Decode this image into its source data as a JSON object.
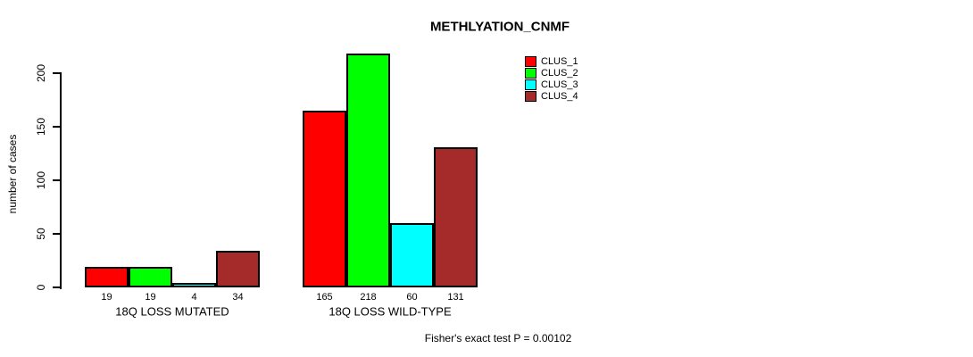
{
  "chart_data": {
    "type": "bar",
    "title": "METHLYATION_CNMF",
    "ylabel": "number of cases",
    "xlabel": "",
    "yticks": [
      0,
      50,
      100,
      150,
      200
    ],
    "ylim": [
      0,
      220
    ],
    "grid": false,
    "legend_position": "top-right",
    "categories": [
      "18Q LOSS MUTATED",
      "18Q LOSS WILD-TYPE"
    ],
    "series": [
      {
        "name": "CLUS_1",
        "color": "#ff0000",
        "values": [
          19,
          165
        ]
      },
      {
        "name": "CLUS_2",
        "color": "#00ff00",
        "values": [
          19,
          218
        ]
      },
      {
        "name": "CLUS_3",
        "color": "#00ffff",
        "values": [
          4,
          60
        ]
      },
      {
        "name": "CLUS_4",
        "color": "#a52a2a",
        "values": [
          34,
          131
        ]
      }
    ],
    "bar_value_labels": [
      19,
      19,
      4,
      34,
      165,
      218,
      60,
      131
    ],
    "annotation": "Fisher's exact test P = 0.00102",
    "axis_color": "#000000",
    "bar_border_color": "#000000"
  }
}
